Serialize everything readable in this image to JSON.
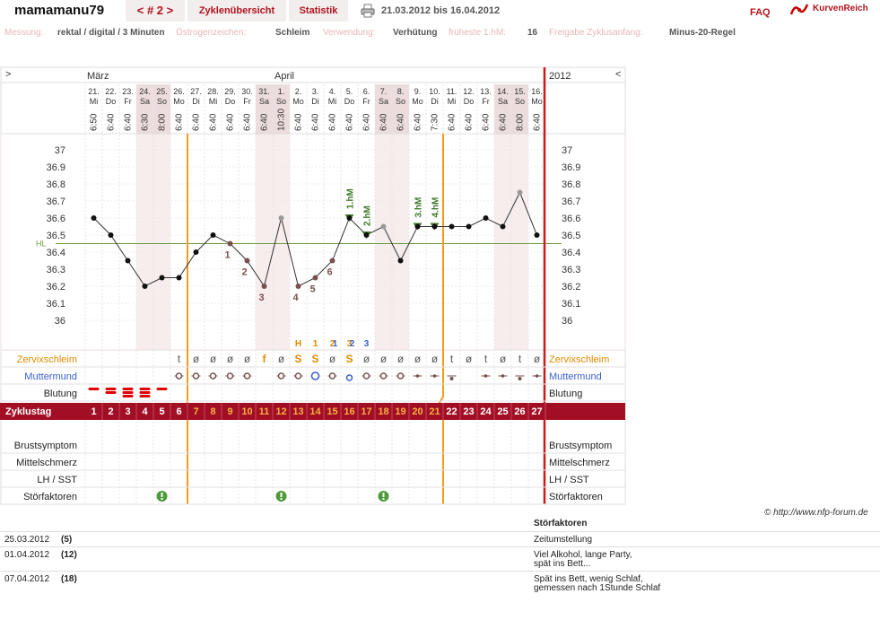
{
  "header": {
    "title": "mamamanu79",
    "nav_label": "< # 2 >",
    "tab_cycles": "Zyklenübersicht",
    "tab_stats": "Statistik",
    "date_range": "21.03.2012 bis 16.04.2012",
    "faq": "FAQ",
    "brand": "KurvenReich",
    "print_icon": "printer-icon",
    "logo_icon": "kurvenreich-logo-icon"
  },
  "meta": {
    "messung_label": "Messung:",
    "messung_value": "rektal / digital / 3 Minuten",
    "oestrogen_label": "Östrogenzeichen:",
    "oestrogen_value": "Schleim",
    "verwendung_label": "Verwendung:",
    "verwendung_value": "Verhütung",
    "fruehste_label": "früheste 1.hM:",
    "fruehste_value": "16",
    "freigabe_label": "Freigabe Zyklusanfang:",
    "freigabe_value": "Minus-20-Regel"
  },
  "chart_data": {
    "type": "line",
    "year": "2012",
    "nav_left": ">",
    "nav_right": "<",
    "months": [
      {
        "label": "März",
        "start_day": 1
      },
      {
        "label": "April",
        "start_day": 12
      }
    ],
    "days": [
      {
        "date": "21.",
        "wd": "Mi",
        "time": "6:50",
        "temp": 36.6,
        "state": "normal"
      },
      {
        "date": "22.",
        "wd": "Do",
        "time": "6:40",
        "temp": 36.5,
        "state": "normal"
      },
      {
        "date": "23.",
        "wd": "Fr",
        "time": "6:40",
        "temp": 36.35,
        "state": "normal"
      },
      {
        "date": "24.",
        "wd": "Sa",
        "time": "6:30",
        "temp": 36.2,
        "state": "normal"
      },
      {
        "date": "25.",
        "wd": "So",
        "time": "8:00",
        "temp": 36.25,
        "state": "normal"
      },
      {
        "date": "26.",
        "wd": "Mo",
        "time": "6:40",
        "temp": 36.25,
        "state": "normal"
      },
      {
        "date": "27.",
        "wd": "Di",
        "time": "6:40",
        "temp": 36.4,
        "state": "normal"
      },
      {
        "date": "28.",
        "wd": "Mi",
        "time": "6:40",
        "temp": 36.5,
        "state": "normal"
      },
      {
        "date": "29.",
        "wd": "Do",
        "time": "6:40",
        "temp": 36.45,
        "state": "low"
      },
      {
        "date": "30.",
        "wd": "Fr",
        "time": "6:40",
        "temp": 36.35,
        "state": "low"
      },
      {
        "date": "31.",
        "wd": "Sa",
        "time": "6:40",
        "temp": 36.2,
        "state": "low"
      },
      {
        "date": "1.",
        "wd": "So",
        "time": "10:30",
        "temp": 36.6,
        "state": "excluded"
      },
      {
        "date": "2.",
        "wd": "Mo",
        "time": "6:40",
        "temp": 36.2,
        "state": "low"
      },
      {
        "date": "3.",
        "wd": "Di",
        "time": "6:40",
        "temp": 36.25,
        "state": "low"
      },
      {
        "date": "4.",
        "wd": "Mi",
        "time": "6:40",
        "temp": 36.35,
        "state": "low"
      },
      {
        "date": "5.",
        "wd": "Do",
        "time": "6:40",
        "temp": 36.6,
        "state": "high"
      },
      {
        "date": "6.",
        "wd": "Fr",
        "time": "6:40",
        "temp": 36.5,
        "state": "high"
      },
      {
        "date": "7.",
        "wd": "Sa",
        "time": "6:40",
        "temp": 36.55,
        "state": "excluded"
      },
      {
        "date": "8.",
        "wd": "So",
        "time": "6:40",
        "temp": 36.35,
        "state": "normal"
      },
      {
        "date": "9.",
        "wd": "Mo",
        "time": "6:40",
        "temp": 36.55,
        "state": "high"
      },
      {
        "date": "10.",
        "wd": "Di",
        "time": "7:30",
        "temp": 36.55,
        "state": "high"
      },
      {
        "date": "11.",
        "wd": "Mi",
        "time": "6:40",
        "temp": 36.55,
        "state": "normal"
      },
      {
        "date": "12.",
        "wd": "Do",
        "time": "6:40",
        "temp": 36.55,
        "state": "normal"
      },
      {
        "date": "13.",
        "wd": "Fr",
        "time": "6:40",
        "temp": 36.6,
        "state": "normal"
      },
      {
        "date": "14.",
        "wd": "Sa",
        "time": "6:40",
        "temp": 36.55,
        "state": "normal"
      },
      {
        "date": "15.",
        "wd": "So",
        "time": "8:00",
        "temp": 36.75,
        "state": "excluded"
      },
      {
        "date": "16.",
        "wd": "Mo",
        "time": "6:40",
        "temp": 36.5,
        "state": "normal"
      }
    ],
    "weekend_days": [
      4,
      5,
      11,
      12,
      18,
      19,
      25,
      26
    ],
    "ylim": [
      36,
      37
    ],
    "yticks": [
      "37",
      "36.9",
      "36.8",
      "36.7",
      "36.6",
      "36.5",
      "36.4",
      "36.3",
      "36.2",
      "36.1",
      "36"
    ],
    "cover_line": {
      "value": 36.45,
      "label": "HL"
    },
    "low_labels": [
      {
        "day": 9,
        "label": "1"
      },
      {
        "day": 10,
        "label": "2"
      },
      {
        "day": 11,
        "label": "3"
      },
      {
        "day": 13,
        "label": "4"
      },
      {
        "day": 14,
        "label": "5"
      },
      {
        "day": 15,
        "label": "6"
      }
    ],
    "high_labels": [
      {
        "day": 16,
        "label": "1.hM"
      },
      {
        "day": 17,
        "label": "2.hM"
      },
      {
        "day": 20,
        "label": "3.hM"
      },
      {
        "day": 21,
        "label": "4.hM"
      }
    ],
    "vertical_markers": [
      {
        "after_day": 6
      },
      {
        "after_day": 21
      }
    ],
    "mucus_top_labels": [
      {
        "day": 13,
        "text": "H",
        "color": "#e08a00"
      },
      {
        "day": 14,
        "text": "1",
        "color": "#e08a00"
      },
      {
        "day": 15,
        "text": "2",
        "color": "#e08a00"
      },
      {
        "day": 15,
        "text": "1",
        "color": "#3a5fcd",
        "offset": 5
      },
      {
        "day": 16,
        "text": "3",
        "color": "#e08a00"
      },
      {
        "day": 16,
        "text": "2",
        "color": "#3a5fcd",
        "offset": 5
      },
      {
        "day": 17,
        "text": "3",
        "color": "#3a5fcd"
      }
    ],
    "rows": {
      "cervical_mucus": {
        "label": "Zervixschleim",
        "values": [
          "",
          "",
          "",
          "",
          "",
          "t",
          "ø",
          "ø",
          "ø",
          "ø",
          "f",
          "ø",
          "S",
          "S",
          "ø",
          "S",
          "ø",
          "ø",
          "ø",
          "ø",
          "ø",
          "t",
          "ø",
          "t",
          "ø",
          "t",
          "ø"
        ]
      },
      "cervix": {
        "label": "Muttermund",
        "values": [
          "",
          "",
          "",
          "",
          "",
          "o",
          "o",
          "o",
          "o",
          "o",
          "",
          "o",
          "o",
          "O",
          "o",
          "u",
          "o",
          "o",
          "o",
          "-",
          "-",
          "d",
          "",
          "-",
          "-",
          "d",
          "-"
        ]
      },
      "bleeding": {
        "label": "Blutung",
        "values": [
          1,
          2,
          3,
          3,
          1,
          0,
          0,
          0,
          0,
          0,
          0,
          0,
          0,
          0,
          0,
          0,
          0,
          0,
          0,
          0,
          0,
          0,
          0,
          0,
          0,
          0,
          0
        ]
      },
      "cycle_day": {
        "label": "Zyklustag",
        "values": [
          "1",
          "2",
          "3",
          "4",
          "5",
          "6",
          "7",
          "8",
          "9",
          "10",
          "11",
          "12",
          "13",
          "14",
          "15",
          "16",
          "17",
          "18",
          "19",
          "20",
          "21",
          "22",
          "23",
          "24",
          "25",
          "26",
          "27"
        ]
      },
      "breast": {
        "label": "Brustsymptom"
      },
      "midpain": {
        "label": "Mittelschmerz"
      },
      "lh": {
        "label": "LH / SST"
      },
      "disturbance": {
        "label": "Störfaktoren",
        "days": [
          5,
          12,
          18
        ]
      }
    }
  },
  "copyright": "© http://www.nfp-forum.de",
  "notes": {
    "header": "Störfaktoren",
    "rows": [
      {
        "date": "25.03.2012",
        "day": "(5)",
        "text_lines": [
          "Zeitumstellung"
        ]
      },
      {
        "date": "01.04.2012",
        "day": "(12)",
        "text_lines": [
          "Viel Alkohol, lange Party,",
          "spät ins Bett..."
        ]
      },
      {
        "date": "07.04.2012",
        "day": "(18)",
        "text_lines": [
          "Spät ins Bett, wenig Schlaf,",
          "gemessen nach 1Stunde Schlaf"
        ]
      }
    ]
  }
}
